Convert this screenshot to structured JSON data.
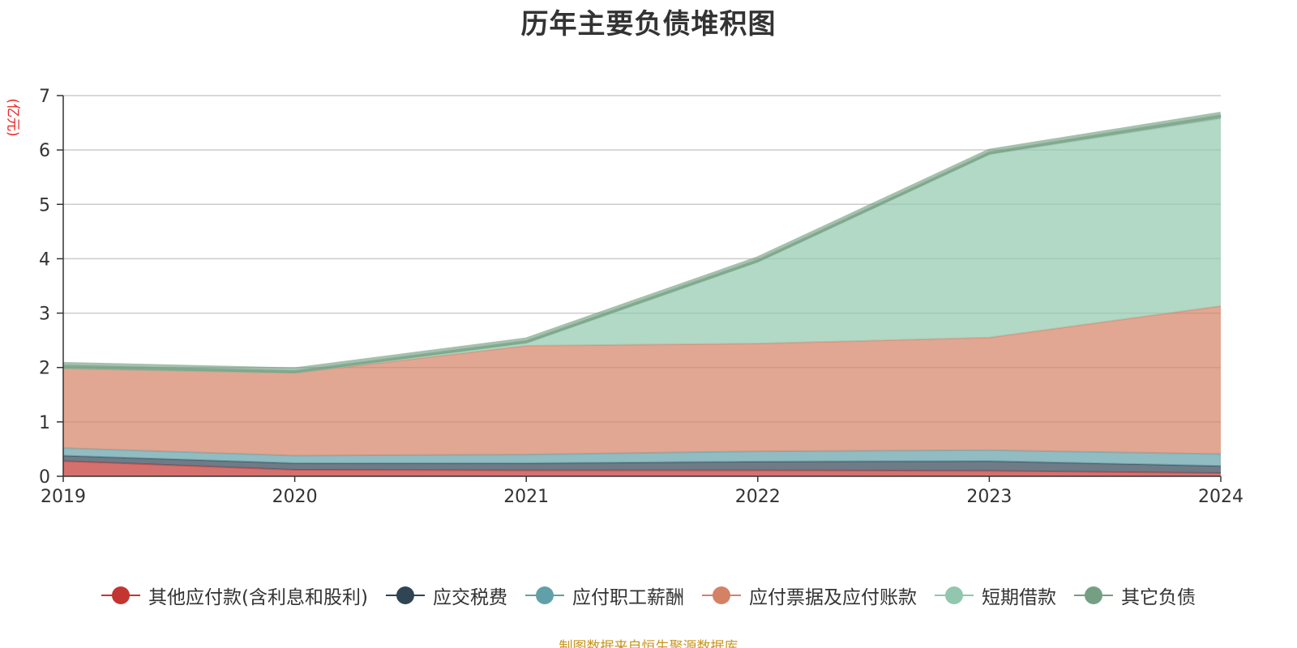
{
  "chart_data": {
    "type": "area",
    "stacked": true,
    "title": "历年主要负债堆积图",
    "unit_label": "(亿元)",
    "x": [
      "2019",
      "2020",
      "2021",
      "2022",
      "2023",
      "2024"
    ],
    "ylim": [
      0,
      7
    ],
    "yticks": [
      "0",
      "1",
      "2",
      "3",
      "4",
      "5",
      "6",
      "7"
    ],
    "grid": true,
    "legend_position": "bottom",
    "series": [
      {
        "name": "其他应付款(含利息和股利)",
        "color": "#c23531",
        "values": [
          0.28,
          0.12,
          0.11,
          0.11,
          0.1,
          0.06
        ]
      },
      {
        "name": "应交税费",
        "color": "#2f4554",
        "values": [
          0.1,
          0.12,
          0.13,
          0.16,
          0.18,
          0.13
        ]
      },
      {
        "name": "应付职工薪酬",
        "color": "#61a0a8",
        "values": [
          0.14,
          0.14,
          0.16,
          0.19,
          0.2,
          0.22
        ]
      },
      {
        "name": "应付票据及应付账款",
        "color": "#d48265",
        "values": [
          1.46,
          1.52,
          2.0,
          1.98,
          2.07,
          2.72
        ]
      },
      {
        "name": "短期借款",
        "color": "#91c7ae",
        "values": [
          0.0,
          0.0,
          0.05,
          1.5,
          3.37,
          3.45
        ]
      },
      {
        "name": "其它负债",
        "color": "#749f83",
        "values": [
          0.07,
          0.05,
          0.05,
          0.05,
          0.05,
          0.07
        ]
      }
    ]
  },
  "source_note": "制图数据来自恒生聚源数据库"
}
